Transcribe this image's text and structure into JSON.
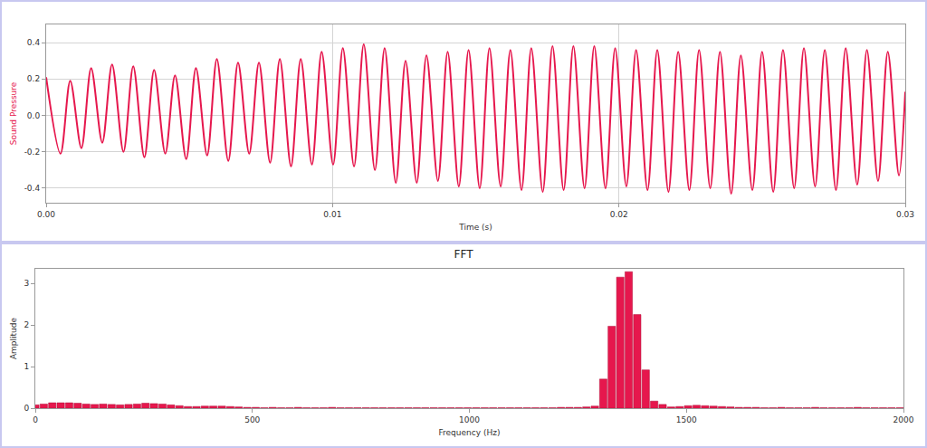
{
  "chart_data": [
    {
      "type": "line",
      "x_label": "Time (s)",
      "y_label": "Sound Pressure",
      "color": "#e6174d",
      "grid": true,
      "x": [
        0,
        0.0005,
        0.00084,
        0.00123,
        0.00157,
        0.00196,
        0.0023,
        0.0027,
        0.00304,
        0.00343,
        0.00377,
        0.00416,
        0.0045,
        0.00489,
        0.00523,
        0.00562,
        0.00596,
        0.00636,
        0.0067,
        0.00709,
        0.00743,
        0.00782,
        0.00816,
        0.00855,
        0.00889,
        0.00928,
        0.00962,
        0.01002,
        0.01036,
        0.01075,
        0.01109,
        0.01148,
        0.01182,
        0.01221,
        0.01255,
        0.01294,
        0.01328,
        0.01368,
        0.01402,
        0.01441,
        0.01475,
        0.01514,
        0.01548,
        0.01587,
        0.01621,
        0.0166,
        0.01694,
        0.01734,
        0.01768,
        0.01807,
        0.01841,
        0.0188,
        0.01914,
        0.01953,
        0.01987,
        0.02026,
        0.0206,
        0.021,
        0.02134,
        0.02173,
        0.02207,
        0.02246,
        0.0228,
        0.02319,
        0.02353,
        0.02392,
        0.02426,
        0.02466,
        0.025,
        0.02539,
        0.02573,
        0.02612,
        0.02646,
        0.02685,
        0.02719,
        0.02758,
        0.02792,
        0.02832,
        0.02866,
        0.02905,
        0.02939,
        0.02978,
        0.03
      ],
      "values": [
        0.21,
        -0.21,
        0.19,
        -0.18,
        0.26,
        -0.15,
        0.28,
        -0.2,
        0.27,
        -0.23,
        0.25,
        -0.21,
        0.22,
        -0.24,
        0.26,
        -0.22,
        0.31,
        -0.25,
        0.29,
        -0.21,
        0.29,
        -0.26,
        0.31,
        -0.28,
        0.31,
        -0.27,
        0.35,
        -0.27,
        0.37,
        -0.28,
        0.39,
        -0.3,
        0.37,
        -0.37,
        0.3,
        -0.37,
        0.33,
        -0.36,
        0.35,
        -0.39,
        0.36,
        -0.4,
        0.37,
        -0.39,
        0.36,
        -0.41,
        0.37,
        -0.42,
        0.38,
        -0.41,
        0.38,
        -0.4,
        0.38,
        -0.4,
        0.37,
        -0.39,
        0.36,
        -0.41,
        0.36,
        -0.42,
        0.35,
        -0.41,
        0.36,
        -0.4,
        0.35,
        -0.43,
        0.33,
        -0.41,
        0.35,
        -0.42,
        0.36,
        -0.4,
        0.37,
        -0.39,
        0.36,
        -0.41,
        0.37,
        -0.38,
        0.36,
        -0.36,
        0.35,
        -0.33,
        0.13
      ],
      "xlim": [
        0,
        0.03
      ],
      "xticks": [
        {
          "value": 0,
          "label": "0.00"
        },
        0.01,
        0.02,
        0.03
      ],
      "ylim": [
        -0.48,
        0.5
      ],
      "yticks": [
        -0.4,
        -0.2,
        {
          "value": 0,
          "label": "0.0"
        },
        0.2,
        0.4
      ]
    },
    {
      "type": "bar",
      "title": "FFT",
      "x_label": "Frequency (Hz)",
      "y_label": "Amplitude",
      "color": "#e6174d",
      "grid": false,
      "x": [
        0,
        19.5,
        39.1,
        58.6,
        78.1,
        97.7,
        117.2,
        136.7,
        156.2,
        175.8,
        195.3,
        214.8,
        234.4,
        253.9,
        273.4,
        293.0,
        312.5,
        332.0,
        351.5,
        371.1,
        390.6,
        410.1,
        429.7,
        449.2,
        468.7,
        488.3,
        507.8,
        527.3,
        546.8,
        566.4,
        585.9,
        605.4,
        625.0,
        644.5,
        664.0,
        683.6,
        703.1,
        722.6,
        742.1,
        761.7,
        781.2,
        800.7,
        820.3,
        839.8,
        859.3,
        878.9,
        898.4,
        917.9,
        937.4,
        957.0,
        976.5,
        996.0,
        1015.6,
        1035.1,
        1054.6,
        1074.2,
        1093.7,
        1113.2,
        1132.7,
        1152.3,
        1171.8,
        1191.3,
        1210.9,
        1230.4,
        1249.9,
        1269.5,
        1289.0,
        1308.5,
        1328.0,
        1347.6,
        1367.1,
        1386.6,
        1406.2,
        1425.7,
        1445.2,
        1464.8,
        1484.3,
        1503.8,
        1523.3,
        1542.9,
        1562.4,
        1581.9,
        1601.5,
        1621.0,
        1640.5,
        1660.1,
        1679.6,
        1699.1,
        1718.6,
        1738.2,
        1757.7,
        1777.2,
        1796.8,
        1816.3,
        1835.8,
        1855.4,
        1874.9,
        1894.4,
        1913.9,
        1933.5,
        1953.0,
        1972.5,
        1992.1
      ],
      "values": [
        0.08,
        0.1,
        0.13,
        0.13,
        0.13,
        0.12,
        0.1,
        0.09,
        0.1,
        0.09,
        0.08,
        0.09,
        0.1,
        0.12,
        0.11,
        0.1,
        0.08,
        0.06,
        0.04,
        0.04,
        0.05,
        0.05,
        0.05,
        0.04,
        0.03,
        0.02,
        0.02,
        0.01,
        0.02,
        0.01,
        0.01,
        0.02,
        0.01,
        0.01,
        0.01,
        0.02,
        0.01,
        0.01,
        0.01,
        0.01,
        0.01,
        0.01,
        0.01,
        0.01,
        0.01,
        0.01,
        0.01,
        0.01,
        0.01,
        0.01,
        0.01,
        0.01,
        0.01,
        0.01,
        0.01,
        0.01,
        0.01,
        0.01,
        0.01,
        0.01,
        0.01,
        0.01,
        0.02,
        0.02,
        0.02,
        0.03,
        0.05,
        0.7,
        1.97,
        3.15,
        3.28,
        2.25,
        0.92,
        0.17,
        0.09,
        0.03,
        0.04,
        0.06,
        0.07,
        0.06,
        0.05,
        0.04,
        0.03,
        0.02,
        0.02,
        0.02,
        0.01,
        0.01,
        0.02,
        0.01,
        0.01,
        0.01,
        0.02,
        0.01,
        0.01,
        0.01,
        0.01,
        0.02,
        0.01,
        0.01,
        0.01,
        0.01,
        0.01
      ],
      "xlim": [
        0,
        2000
      ],
      "xticks": [
        0,
        500,
        1000,
        1500,
        2000
      ],
      "ylim": [
        0,
        3.35
      ],
      "yticks": [
        0,
        1,
        2,
        3
      ]
    }
  ]
}
